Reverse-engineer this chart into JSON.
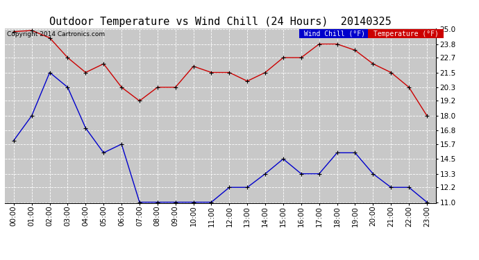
{
  "title": "Outdoor Temperature vs Wind Chill (24 Hours)  20140325",
  "copyright": "Copyright 2014 Cartronics.com",
  "hours": [
    "00:00",
    "01:00",
    "02:00",
    "03:00",
    "04:00",
    "05:00",
    "06:00",
    "07:00",
    "08:00",
    "09:00",
    "10:00",
    "11:00",
    "12:00",
    "13:00",
    "14:00",
    "15:00",
    "16:00",
    "17:00",
    "18:00",
    "19:00",
    "20:00",
    "21:00",
    "22:00",
    "23:00"
  ],
  "temperature": [
    24.8,
    24.9,
    24.3,
    22.7,
    21.5,
    22.2,
    20.3,
    19.2,
    20.3,
    20.3,
    22.0,
    21.5,
    21.5,
    20.8,
    21.5,
    22.7,
    22.7,
    23.8,
    23.8,
    23.3,
    22.2,
    21.5,
    20.3,
    18.0
  ],
  "wind_chill": [
    16.0,
    18.0,
    21.5,
    20.3,
    17.0,
    15.0,
    15.7,
    11.0,
    11.0,
    11.0,
    11.0,
    11.0,
    12.2,
    12.2,
    13.3,
    14.5,
    13.3,
    13.3,
    15.0,
    15.0,
    13.3,
    12.2,
    12.2,
    11.0
  ],
  "temp_color": "#cc0000",
  "wind_chill_color": "#0000cc",
  "plot_bg_color": "#c8c8c8",
  "fig_bg_color": "#ffffff",
  "grid_color": "#ffffff",
  "ylim_min": 11.0,
  "ylim_max": 25.0,
  "yticks": [
    11.0,
    12.2,
    13.3,
    14.5,
    15.7,
    16.8,
    18.0,
    19.2,
    20.3,
    21.5,
    22.7,
    23.8,
    25.0
  ],
  "legend_wind_bg": "#0000cc",
  "legend_temp_bg": "#cc0000",
  "legend_text_color": "#ffffff",
  "title_fontsize": 11,
  "axis_label_fontsize": 7.5,
  "tick_fontsize": 7.5,
  "copyright_fontsize": 6.5
}
